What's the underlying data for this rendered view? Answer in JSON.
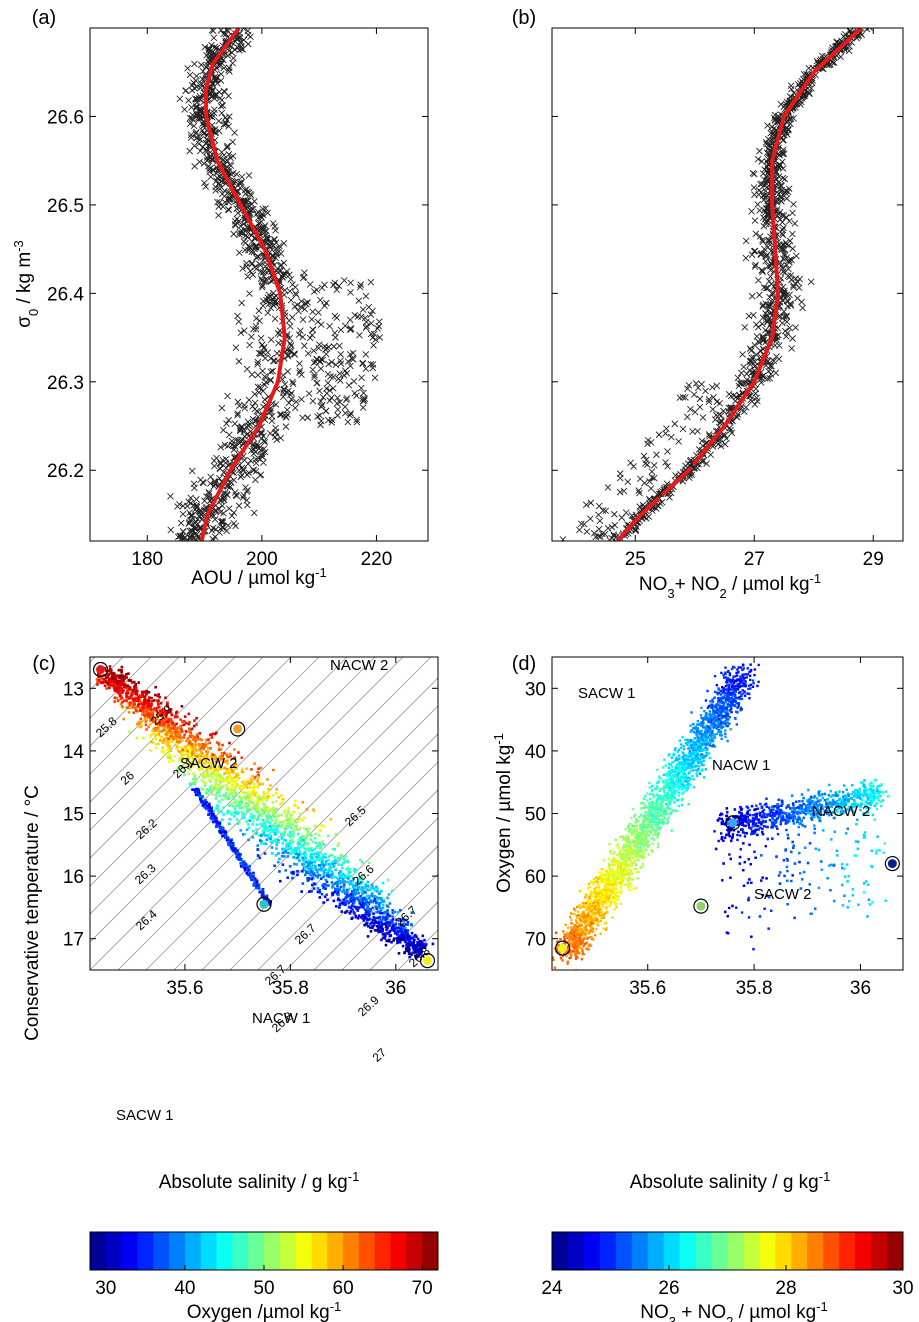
{
  "chart_data": [
    {
      "panel": "(a)",
      "type": "scatter",
      "xlabel": "AOU /  µmol kg-1",
      "ylabel": "σ0 / kg m-3",
      "xlim": [
        170,
        229
      ],
      "ylim": [
        26.7,
        26.12
      ],
      "xticks": [
        "180",
        "200",
        "220"
      ],
      "yticks": [
        "26.2",
        "26.3",
        "26.4",
        "26.5",
        "26.6"
      ],
      "marker": "x",
      "fit_line_color": "#e8191a",
      "fit_line": {
        "sigma": [
          26.12,
          26.15,
          26.2,
          26.25,
          26.3,
          26.35,
          26.4,
          26.45,
          26.5,
          26.55,
          26.6,
          26.63,
          26.66,
          26.7
        ],
        "aou": [
          189.5,
          190.5,
          194.5,
          199.5,
          202.8,
          204.0,
          203.2,
          200.5,
          196.3,
          192.2,
          190.3,
          190.2,
          191.5,
          196.0
        ]
      }
    },
    {
      "panel": "(b)",
      "type": "scatter",
      "xlabel": "NO3+ NO2 /  µmol kg-1",
      "ylabel": "",
      "xlim": [
        23.6,
        29.5
      ],
      "ylim": [
        26.7,
        26.12
      ],
      "xticks": [
        "25",
        "27",
        "29"
      ],
      "yticks": [],
      "marker": "x",
      "fit_line_color": "#e8191a",
      "fit_line": {
        "sigma": [
          26.12,
          26.15,
          26.2,
          26.25,
          26.3,
          26.35,
          26.4,
          26.45,
          26.5,
          26.55,
          26.6,
          26.65,
          26.7
        ],
        "no3": [
          24.7,
          25.1,
          25.9,
          26.5,
          27.0,
          27.3,
          27.4,
          27.35,
          27.3,
          27.3,
          27.5,
          28.0,
          28.8
        ]
      }
    },
    {
      "panel": "(c)",
      "type": "scatter",
      "xlabel": "Absolute salinity / g kg-1",
      "ylabel": "Conservative temperature / °C",
      "xlim": [
        35.42,
        36.08
      ],
      "ylim": [
        12.5,
        17.5
      ],
      "xticks": [
        "35.6",
        "35.8",
        "36"
      ],
      "yticks": [
        "13",
        "14",
        "15",
        "16",
        "17"
      ],
      "color_by": "Oxygen",
      "water_masses": [
        {
          "name": "SACW 1",
          "x": 35.44,
          "y": 12.7
        },
        {
          "name": "NACW 1",
          "x": 35.7,
          "y": 13.65
        },
        {
          "name": "SACW 2",
          "x": 35.75,
          "y": 16.45
        },
        {
          "name": "NACW 2",
          "x": 36.06,
          "y": 17.35
        }
      ],
      "contour_labels": [
        "25.8",
        "25.9",
        "26",
        "26.1",
        "26.2",
        "26.3",
        "26.4",
        "26.5",
        "26.6",
        "26.7",
        "26.7",
        "26.7",
        "26.8",
        "26.8",
        "26.9",
        "27"
      ]
    },
    {
      "panel": "(d)",
      "type": "scatter",
      "xlabel": "Absolute salinity / g kg-1",
      "ylabel": "Oxygen / µmol kg-1",
      "xlim": [
        35.42,
        36.08
      ],
      "ylim": [
        25,
        75
      ],
      "xticks": [
        "35.6",
        "35.8",
        "36"
      ],
      "yticks": [
        "30",
        "40",
        "50",
        "60",
        "70"
      ],
      "color_by": "NO3 + NO2",
      "water_masses": [
        {
          "name": "SACW 1",
          "x": 35.44,
          "y": 71.5
        },
        {
          "name": "NACW 1",
          "x": 35.7,
          "y": 64.8
        },
        {
          "name": "SACW 2",
          "x": 35.76,
          "y": 51.5
        },
        {
          "name": "NACW 2",
          "x": 36.06,
          "y": 58.0
        }
      ]
    }
  ],
  "colorbars": [
    {
      "label": "Oxygen /µmol kg-1",
      "range": [
        28,
        72
      ],
      "ticks": [
        "30",
        "40",
        "50",
        "60",
        "70"
      ]
    },
    {
      "label": "NO3  + NO2  / µmol kg-1",
      "range": [
        24,
        30
      ],
      "ticks": [
        "24",
        "26",
        "28",
        "30"
      ]
    }
  ]
}
